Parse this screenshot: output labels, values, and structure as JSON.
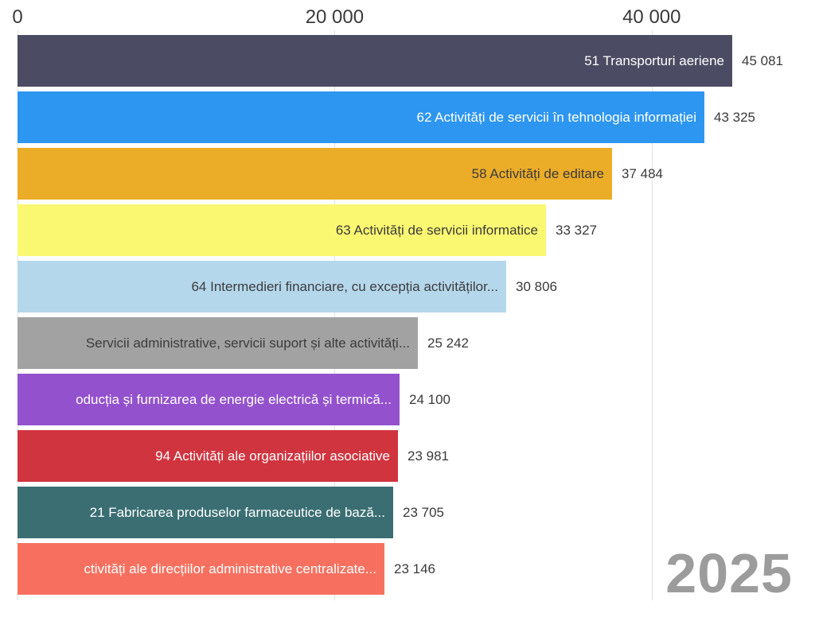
{
  "chart_data": {
    "type": "bar",
    "orientation": "horizontal",
    "title": "",
    "legend": "none",
    "grid": "vertical-light",
    "axis_position": "top",
    "xlim": [
      0,
      50300
    ],
    "x_ticks": [
      {
        "label": "0",
        "value": 0
      },
      {
        "label": "20 000",
        "value": 20000
      },
      {
        "label": "40 000",
        "value": 40000
      }
    ],
    "year_label": "2025",
    "bars": [
      {
        "label": "51 Transporturi aeriene",
        "value": 45081,
        "value_label": "45 081",
        "bar_color": "#4b4b63",
        "label_color": "#ffffff"
      },
      {
        "label": "62 Activități de servicii în tehnologia informației",
        "value": 43325,
        "value_label": "43 325",
        "bar_color": "#2d96f0",
        "label_color": "#ffffff"
      },
      {
        "label": "58 Activități de editare",
        "value": 37484,
        "value_label": "37 484",
        "bar_color": "#ebac28",
        "label_color": "#3c3c3c"
      },
      {
        "label": "63 Activități de servicii informatice",
        "value": 33327,
        "value_label": "33 327",
        "bar_color": "#faf771",
        "label_color": "#3c3c3c"
      },
      {
        "label": "64 Intermedieri financiare, cu excepția activităților...",
        "value": 30806,
        "value_label": "30 806",
        "bar_color": "#b5d7eb",
        "label_color": "#3c3c3c"
      },
      {
        "label": "Servicii administrative, servicii suport și alte activități...",
        "value": 25242,
        "value_label": "25 242",
        "bar_color": "#a2a2a2",
        "label_color": "#3c3c3c"
      },
      {
        "label": "oducția și furnizarea de energie electrică și termică...",
        "value": 24100,
        "value_label": "24 100",
        "bar_color": "#9351ce",
        "label_color": "#ffffff"
      },
      {
        "label": "94 Activități ale organizațiilor asociative",
        "value": 23981,
        "value_label": "23 981",
        "bar_color": "#d0343f",
        "label_color": "#ffffff"
      },
      {
        "label": "21 Fabricarea produselor farmaceutice de bază...",
        "value": 23705,
        "value_label": "23 705",
        "bar_color": "#3a6e73",
        "label_color": "#ffffff"
      },
      {
        "label": "ctivități ale direcțiilor administrative centralizate...",
        "value": 23146,
        "value_label": "23 146",
        "bar_color": "#f7705f",
        "label_color": "#ffffff"
      }
    ]
  },
  "colors": {
    "background": "#ffffff",
    "axis_text": "#3a3a3a",
    "value_text": "#3a3a3a",
    "gridline": "#e2e2e2",
    "year_text": "#9c9c9c"
  }
}
